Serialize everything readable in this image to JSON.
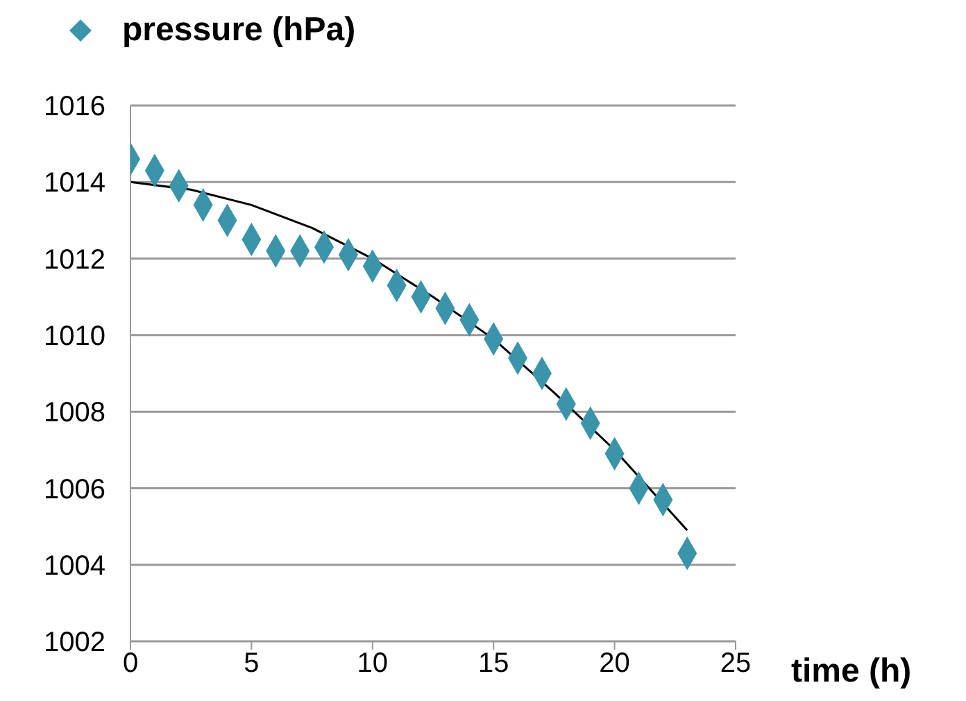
{
  "chart_data": {
    "type": "scatter",
    "xlabel": "time (h)",
    "xlim": [
      0,
      25
    ],
    "xticks": [
      0,
      5,
      10,
      15,
      20,
      25
    ],
    "ylim": [
      1002,
      1016
    ],
    "yticks": [
      1002,
      1004,
      1006,
      1008,
      1010,
      1012,
      1014,
      1016
    ],
    "grid": "y",
    "legend": "top left",
    "series": [
      {
        "name": "pressure (hPa)",
        "color": "#3a95ab",
        "marker": "diamond",
        "x": [
          0,
          1,
          2,
          3,
          4,
          5,
          6,
          7,
          8,
          9,
          10,
          11,
          12,
          13,
          14,
          15,
          16,
          17,
          18,
          19,
          20,
          21,
          22,
          23
        ],
        "values": [
          1014.6,
          1014.3,
          1013.9,
          1013.4,
          1013.0,
          1012.5,
          1012.2,
          1012.2,
          1012.3,
          1012.1,
          1011.8,
          1011.3,
          1011.0,
          1010.7,
          1010.4,
          1009.9,
          1009.4,
          1009.0,
          1008.2,
          1007.7,
          1006.9,
          1006.0,
          1005.7,
          1004.3
        ]
      },
      {
        "type": "line",
        "color": "#000000",
        "line_style": "solid",
        "x": [
          0,
          2.5,
          5,
          7.5,
          10,
          12.5,
          15,
          17.5,
          20,
          23
        ],
        "values": [
          1014.0,
          1013.8,
          1013.4,
          1012.8,
          1012.0,
          1011.0,
          1009.9,
          1008.5,
          1007.0,
          1004.9
        ]
      }
    ]
  }
}
